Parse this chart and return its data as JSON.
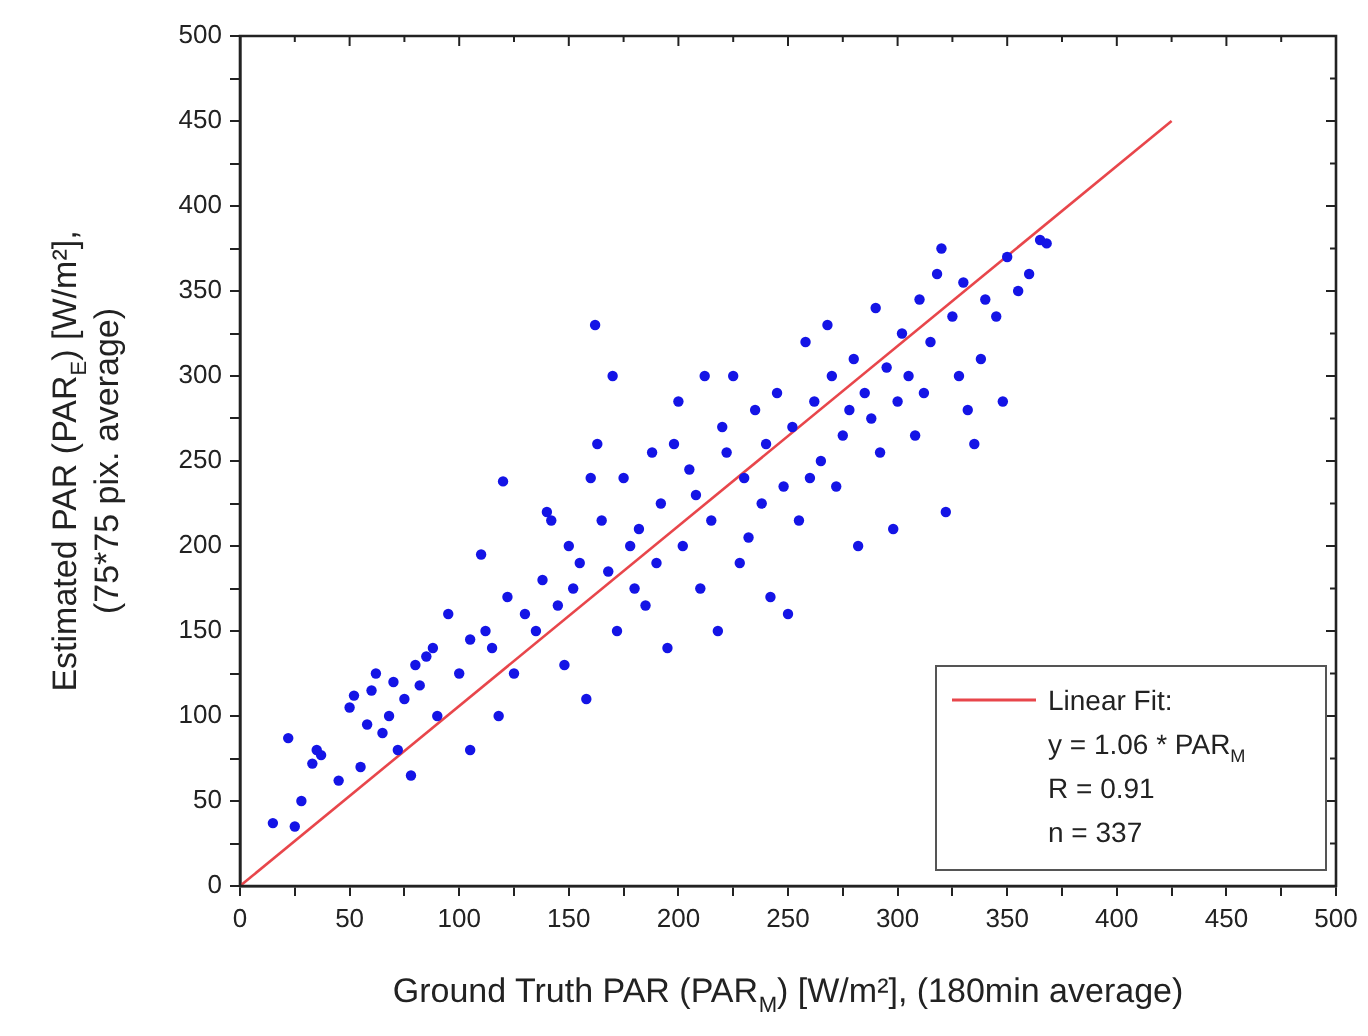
{
  "chart_data": {
    "type": "scatter",
    "xlabel": "Ground Truth PAR (PAR$_{M}$) [W/m²], (180min average)",
    "ylabel": "Estimated PAR (PAR$_{E}$) [W/m²],\n(75*75 pix. average)",
    "xlim": [
      0,
      500
    ],
    "ylim": [
      0,
      500
    ],
    "xticks": [
      0,
      {
        "value": 25,
        "label": null
      },
      50,
      {
        "value": 75,
        "label": null
      },
      100,
      {
        "value": 125,
        "label": null
      },
      150,
      {
        "value": 175,
        "label": null
      },
      200,
      {
        "value": 225,
        "label": null
      },
      250,
      {
        "value": 275,
        "label": null
      },
      300,
      {
        "value": 325,
        "label": null
      },
      350,
      {
        "value": 375,
        "label": null
      },
      400,
      {
        "value": 425,
        "label": null
      },
      450,
      {
        "value": 475,
        "label": null
      },
      500
    ],
    "yticks": [
      0,
      {
        "value": 25,
        "label": null
      },
      50,
      {
        "value": 75,
        "label": null
      },
      100,
      {
        "value": 125,
        "label": null
      },
      150,
      {
        "value": 175,
        "label": null
      },
      200,
      {
        "value": 225,
        "label": null
      },
      250,
      {
        "value": 275,
        "label": null
      },
      300,
      {
        "value": 325,
        "label": null
      },
      350,
      {
        "value": 375,
        "label": null
      },
      400,
      {
        "value": 425,
        "label": null
      },
      450,
      {
        "value": 475,
        "label": null
      },
      500
    ],
    "grid": false,
    "legend": "bottom right",
    "marker": "circle",
    "annotations": [
      "y = 1.06 * PAR$_{M}$",
      "R = 0.91",
      "n = 337"
    ],
    "series": [
      {
        "color": "#1414e6",
        "x": [
          15,
          25,
          22,
          28,
          33,
          35,
          37,
          45,
          50,
          52,
          55,
          58,
          60,
          62,
          65,
          68,
          70,
          72,
          75,
          78,
          80,
          82,
          85,
          88,
          90,
          95,
          100,
          105,
          105,
          110,
          112,
          115,
          118,
          120,
          122,
          125,
          130,
          135,
          138,
          140,
          142,
          145,
          148,
          150,
          152,
          155,
          158,
          160,
          162,
          163,
          165,
          168,
          170,
          172,
          175,
          178,
          180,
          182,
          185,
          188,
          190,
          192,
          195,
          198,
          200,
          202,
          205,
          208,
          210,
          212,
          215,
          218,
          220,
          222,
          225,
          228,
          230,
          232,
          235,
          238,
          240,
          242,
          245,
          248,
          250,
          252,
          255,
          258,
          260,
          262,
          265,
          268,
          270,
          272,
          275,
          278,
          280,
          282,
          285,
          288,
          290,
          292,
          295,
          298,
          300,
          302,
          305,
          308,
          310,
          312,
          315,
          318,
          320,
          322,
          325,
          328,
          330,
          332,
          335,
          338,
          340,
          345,
          348,
          350,
          355,
          360,
          365,
          368
        ],
        "values": [
          37,
          35,
          87,
          50,
          72,
          80,
          77,
          62,
          105,
          112,
          70,
          95,
          115,
          125,
          90,
          100,
          120,
          80,
          110,
          65,
          130,
          118,
          135,
          140,
          100,
          160,
          125,
          80,
          145,
          195,
          150,
          140,
          100,
          238,
          170,
          125,
          160,
          150,
          180,
          220,
          215,
          165,
          130,
          200,
          175,
          190,
          110,
          240,
          330,
          260,
          215,
          185,
          300,
          150,
          240,
          200,
          175,
          210,
          165,
          255,
          190,
          225,
          140,
          260,
          285,
          200,
          245,
          230,
          175,
          300,
          215,
          150,
          270,
          255,
          300,
          190,
          240,
          205,
          280,
          225,
          260,
          170,
          290,
          235,
          160,
          270,
          215,
          320,
          240,
          285,
          250,
          330,
          300,
          235,
          265,
          280,
          310,
          200,
          290,
          275,
          340,
          255,
          305,
          210,
          285,
          325,
          300,
          265,
          345,
          290,
          320,
          360,
          375,
          220,
          335,
          300,
          355,
          280,
          260,
          310,
          345,
          335,
          285,
          370,
          350,
          360,
          380,
          378
        ]
      },
      {
        "type": "line",
        "name": "Linear Fit:",
        "color": "#e8464b",
        "marker": "none",
        "line_style": "solid",
        "x": [
          0,
          425
        ],
        "values": [
          0,
          450
        ]
      }
    ]
  }
}
